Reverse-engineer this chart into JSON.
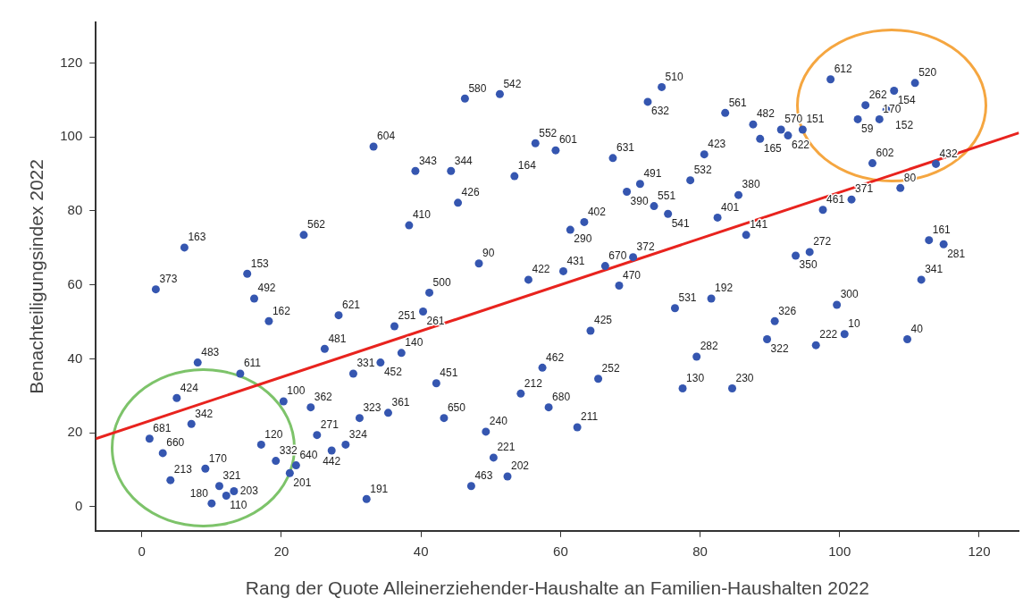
{
  "chart_data": {
    "type": "scatter",
    "xlabel": "Rang der Quote Alleinerziehender-Haushalte an Familien-Haushalten 2022",
    "ylabel": "Benachteiligungsindex 2022",
    "xlim": [
      -6.6,
      125.7
    ],
    "ylim": [
      -6.5,
      131
    ],
    "xticks": [
      0,
      20,
      40,
      60,
      80,
      100,
      120
    ],
    "yticks": [
      0,
      20,
      40,
      60,
      80,
      100,
      120
    ],
    "grid": false,
    "legend": false,
    "marker": "circle",
    "series": [
      {
        "type": "scatter",
        "color": "#3556b0",
        "x": [
          6.1,
          2.0,
          15.1,
          16.1,
          18.2,
          23.2,
          33.2,
          8.0,
          14.1,
          5.0,
          7.1,
          1.1,
          3.0,
          4.1,
          9.1,
          11.1,
          12.1,
          13.2,
          10.0,
          17.1,
          19.2,
          21.2,
          22.1,
          20.3,
          24.2,
          25.1,
          27.2,
          29.2,
          32.2,
          31.2,
          35.3,
          30.3,
          34.2,
          26.2,
          28.2,
          36.2,
          37.2,
          41.2,
          40.3,
          42.2,
          43.3,
          49.3,
          50.4,
          52.4,
          47.2,
          54.3,
          57.4,
          58.3,
          62.4,
          65.4,
          64.3,
          68.4,
          55.4,
          66.4,
          60.4,
          76.4,
          79.5,
          77.5,
          81.6,
          46.3,
          51.3,
          74.5,
          72.5,
          56.4,
          59.3,
          67.5,
          39.2,
          44.3,
          53.4,
          45.3,
          38.3,
          69.5,
          71.4,
          73.4,
          75.4,
          78.6,
          82.5,
          61.4,
          63.4,
          48.3,
          70.4,
          80.6,
          83.6,
          87.6,
          88.6,
          91.6,
          92.6,
          94.7,
          98.7,
          107.8,
          110.8,
          103.7,
          106.7,
          102.6,
          105.7,
          104.7,
          113.8,
          108.7,
          101.7,
          97.6,
          85.5,
          86.6,
          95.7,
          93.7,
          112.8,
          114.9,
          111.7,
          99.6,
          90.7,
          89.6,
          96.6,
          100.7,
          109.7,
          84.6
        ],
        "values": [
          70.1,
          58.8,
          63.0,
          56.3,
          50.2,
          73.5,
          97.4,
          39.0,
          36.0,
          29.4,
          22.4,
          18.4,
          14.5,
          7.2,
          10.3,
          5.6,
          3.0,
          4.2,
          0.9,
          16.8,
          12.4,
          9.1,
          11.2,
          28.5,
          26.9,
          19.4,
          15.2,
          16.8,
          2.1,
          24.0,
          25.4,
          36.0,
          39.0,
          42.7,
          51.8,
          48.8,
          41.6,
          57.9,
          52.8,
          33.4,
          24.0,
          20.3,
          13.3,
          8.2,
          5.6,
          30.6,
          37.6,
          26.9,
          21.5,
          34.6,
          47.6,
          59.8,
          61.4,
          65.1,
          63.7,
          53.7,
          40.6,
          32.0,
          56.3,
          110.4,
          111.6,
          113.5,
          109.5,
          98.3,
          96.4,
          94.3,
          90.8,
          90.8,
          89.4,
          82.2,
          76.1,
          85.2,
          87.3,
          81.3,
          79.2,
          88.3,
          78.2,
          74.9,
          77.0,
          65.8,
          67.5,
          95.3,
          106.5,
          103.4,
          99.5,
          102.0,
          100.4,
          102.0,
          115.6,
          112.5,
          114.6,
          108.6,
          107.4,
          104.8,
          104.8,
          92.9,
          92.7,
          86.2,
          83.1,
          80.3,
          84.3,
          73.5,
          68.9,
          67.9,
          72.1,
          71.0,
          61.4,
          54.6,
          50.2,
          45.3,
          43.7,
          46.7,
          45.3,
          32.0
        ]
      },
      {
        "type": "line",
        "color": "#e8231e",
        "x": [
          -6.6,
          125.7
        ],
        "values": [
          18.4,
          101.1
        ],
        "marker": "none"
      }
    ],
    "annotations": [
      {
        "text": "163",
        "x": 6.1,
        "y": 70.1
      },
      {
        "text": "373",
        "x": 2.0,
        "y": 58.8
      },
      {
        "text": "153",
        "x": 15.1,
        "y": 63.0
      },
      {
        "text": "492",
        "x": 16.1,
        "y": 56.3
      },
      {
        "text": "162",
        "x": 18.2,
        "y": 50.2
      },
      {
        "text": "562",
        "x": 23.2,
        "y": 73.5
      },
      {
        "text": "604",
        "x": 33.2,
        "y": 97.4
      },
      {
        "text": "483",
        "x": 8.0,
        "y": 39.0
      },
      {
        "text": "611",
        "x": 14.1,
        "y": 36.0
      },
      {
        "text": "424",
        "x": 5.0,
        "y": 29.4
      },
      {
        "text": "342",
        "x": 7.1,
        "y": 22.4
      },
      {
        "text": "681",
        "x": 1.1,
        "y": 18.4
      },
      {
        "text": "660",
        "x": 3.0,
        "y": 14.5
      },
      {
        "text": "213",
        "x": 4.1,
        "y": 7.2
      },
      {
        "text": "170",
        "x": 9.1,
        "y": 10.3
      },
      {
        "text": "321",
        "x": 11.1,
        "y": 5.6
      },
      {
        "text": "110",
        "x": 12.1,
        "y": 3.0
      },
      {
        "text": "203",
        "x": 13.2,
        "y": 4.2
      },
      {
        "text": "180",
        "x": 10.0,
        "y": 0.9
      },
      {
        "text": "120",
        "x": 17.1,
        "y": 16.8
      },
      {
        "text": "332",
        "x": 19.2,
        "y": 12.4
      },
      {
        "text": "201",
        "x": 21.2,
        "y": 9.1
      },
      {
        "text": "640",
        "x": 22.1,
        "y": 11.2
      },
      {
        "text": "100",
        "x": 20.3,
        "y": 28.5
      },
      {
        "text": "362",
        "x": 24.2,
        "y": 26.9
      },
      {
        "text": "271",
        "x": 25.1,
        "y": 19.4
      },
      {
        "text": "442",
        "x": 27.2,
        "y": 15.2
      },
      {
        "text": "324",
        "x": 29.2,
        "y": 16.8
      },
      {
        "text": "191",
        "x": 32.2,
        "y": 2.1
      },
      {
        "text": "323",
        "x": 31.2,
        "y": 24.0
      },
      {
        "text": "361",
        "x": 35.3,
        "y": 25.4
      },
      {
        "text": "331",
        "x": 30.3,
        "y": 36.0
      },
      {
        "text": "452",
        "x": 34.2,
        "y": 39.0
      },
      {
        "text": "481",
        "x": 26.2,
        "y": 42.7
      },
      {
        "text": "621",
        "x": 28.2,
        "y": 51.8
      },
      {
        "text": "251",
        "x": 36.2,
        "y": 48.8
      },
      {
        "text": "140",
        "x": 37.2,
        "y": 41.6
      },
      {
        "text": "500",
        "x": 41.2,
        "y": 57.9
      },
      {
        "text": "261",
        "x": 40.3,
        "y": 52.8
      },
      {
        "text": "451",
        "x": 42.2,
        "y": 33.4
      },
      {
        "text": "650",
        "x": 43.3,
        "y": 24.0
      },
      {
        "text": "240",
        "x": 49.3,
        "y": 20.3
      },
      {
        "text": "221",
        "x": 50.4,
        "y": 13.3
      },
      {
        "text": "202",
        "x": 52.4,
        "y": 8.2
      },
      {
        "text": "463",
        "x": 47.2,
        "y": 5.6
      },
      {
        "text": "212",
        "x": 54.3,
        "y": 30.6
      },
      {
        "text": "462",
        "x": 57.4,
        "y": 37.6
      },
      {
        "text": "680",
        "x": 58.3,
        "y": 26.9
      },
      {
        "text": "211",
        "x": 62.4,
        "y": 21.5
      },
      {
        "text": "252",
        "x": 65.4,
        "y": 34.6
      },
      {
        "text": "425",
        "x": 64.3,
        "y": 47.6
      },
      {
        "text": "470",
        "x": 68.4,
        "y": 59.8
      },
      {
        "text": "422",
        "x": 55.4,
        "y": 61.4
      },
      {
        "text": "670",
        "x": 66.4,
        "y": 65.1
      },
      {
        "text": "431",
        "x": 60.4,
        "y": 63.7
      },
      {
        "text": "531",
        "x": 76.4,
        "y": 53.7
      },
      {
        "text": "282",
        "x": 79.5,
        "y": 40.6
      },
      {
        "text": "130",
        "x": 77.5,
        "y": 32.0
      },
      {
        "text": "192",
        "x": 81.6,
        "y": 56.3
      },
      {
        "text": "580",
        "x": 46.3,
        "y": 110.4
      },
      {
        "text": "542",
        "x": 51.3,
        "y": 111.6
      },
      {
        "text": "510",
        "x": 74.5,
        "y": 113.5
      },
      {
        "text": "632",
        "x": 72.5,
        "y": 109.5
      },
      {
        "text": "552",
        "x": 56.4,
        "y": 98.3
      },
      {
        "text": "601",
        "x": 59.3,
        "y": 96.4
      },
      {
        "text": "631",
        "x": 67.5,
        "y": 94.3
      },
      {
        "text": "343",
        "x": 39.2,
        "y": 90.8
      },
      {
        "text": "344",
        "x": 44.3,
        "y": 90.8
      },
      {
        "text": "164",
        "x": 53.4,
        "y": 89.4
      },
      {
        "text": "426",
        "x": 45.3,
        "y": 82.2
      },
      {
        "text": "410",
        "x": 38.3,
        "y": 76.1
      },
      {
        "text": "390",
        "x": 69.5,
        "y": 85.2
      },
      {
        "text": "491",
        "x": 71.4,
        "y": 87.3
      },
      {
        "text": "551",
        "x": 73.4,
        "y": 81.3
      },
      {
        "text": "541",
        "x": 75.4,
        "y": 79.2
      },
      {
        "text": "532",
        "x": 78.6,
        "y": 88.3
      },
      {
        "text": "401",
        "x": 82.5,
        "y": 78.2
      },
      {
        "text": "290",
        "x": 61.4,
        "y": 74.9
      },
      {
        "text": "402",
        "x": 63.4,
        "y": 77.0
      },
      {
        "text": "90",
        "x": 48.3,
        "y": 65.8
      },
      {
        "text": "372",
        "x": 70.4,
        "y": 67.5
      },
      {
        "text": "423",
        "x": 80.6,
        "y": 95.3
      },
      {
        "text": "561",
        "x": 83.6,
        "y": 106.5
      },
      {
        "text": "482",
        "x": 87.6,
        "y": 103.4
      },
      {
        "text": "165",
        "x": 88.6,
        "y": 99.5
      },
      {
        "text": "570",
        "x": 91.6,
        "y": 102.0
      },
      {
        "text": "622",
        "x": 92.6,
        "y": 100.4
      },
      {
        "text": "151",
        "x": 94.7,
        "y": 102.0
      },
      {
        "text": "612",
        "x": 98.7,
        "y": 115.6
      },
      {
        "text": "154",
        "x": 107.8,
        "y": 112.5
      },
      {
        "text": "520",
        "x": 110.8,
        "y": 114.6
      },
      {
        "text": "262",
        "x": 103.7,
        "y": 108.6
      },
      {
        "text": "152",
        "x": 106.7,
        "y": 107.4
      },
      {
        "text": "59",
        "x": 102.6,
        "y": 104.8
      },
      {
        "text": "170",
        "x": 105.7,
        "y": 104.8
      },
      {
        "text": "602",
        "x": 104.7,
        "y": 92.9
      },
      {
        "text": "432",
        "x": 113.8,
        "y": 92.7
      },
      {
        "text": "80",
        "x": 108.7,
        "y": 86.2
      },
      {
        "text": "371",
        "x": 101.7,
        "y": 83.1
      },
      {
        "text": "461",
        "x": 97.6,
        "y": 80.3
      },
      {
        "text": "380",
        "x": 85.5,
        "y": 84.3
      },
      {
        "text": "141",
        "x": 86.6,
        "y": 73.5
      },
      {
        "text": "272",
        "x": 95.7,
        "y": 68.9
      },
      {
        "text": "350",
        "x": 93.7,
        "y": 67.9
      },
      {
        "text": "161",
        "x": 112.8,
        "y": 72.1
      },
      {
        "text": "281",
        "x": 114.9,
        "y": 71.0
      },
      {
        "text": "341",
        "x": 111.7,
        "y": 61.4
      },
      {
        "text": "300",
        "x": 99.6,
        "y": 54.6
      },
      {
        "text": "326",
        "x": 90.7,
        "y": 50.2
      },
      {
        "text": "322",
        "x": 89.6,
        "y": 45.3
      },
      {
        "text": "222",
        "x": 96.6,
        "y": 43.7
      },
      {
        "text": "10",
        "x": 100.7,
        "y": 46.7
      },
      {
        "text": "40",
        "x": 109.7,
        "y": 45.3
      },
      {
        "text": "230",
        "x": 84.6,
        "y": 32.0
      }
    ]
  }
}
